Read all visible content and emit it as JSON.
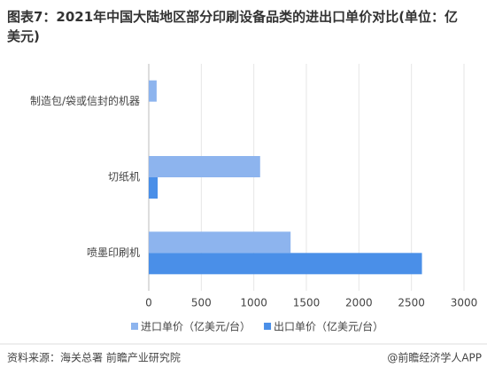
{
  "chart_data": {
    "type": "hbar",
    "title": "图表7：2021年中国大陆地区部分印刷设备品类的进出口单价对比(单位：亿美元)",
    "categories": [
      "制造包/袋或信封的机器",
      "切纸机",
      "喷墨印刷机"
    ],
    "series": [
      {
        "name": "进口单价（亿美元/台）",
        "color": "#8db4ee",
        "values": [
          75,
          1060,
          1350
        ]
      },
      {
        "name": "出口单价（亿美元/台）",
        "color": "#4a8fe8",
        "values": [
          0,
          85,
          2600
        ]
      }
    ],
    "xlim": [
      0,
      3000
    ],
    "xticks": [
      0,
      500,
      1000,
      1500,
      2000,
      2500,
      3000
    ],
    "grid": true,
    "source": "资料来源：海关总署 前瞻产业研究院",
    "credit": "@前瞻经济学人APP"
  }
}
